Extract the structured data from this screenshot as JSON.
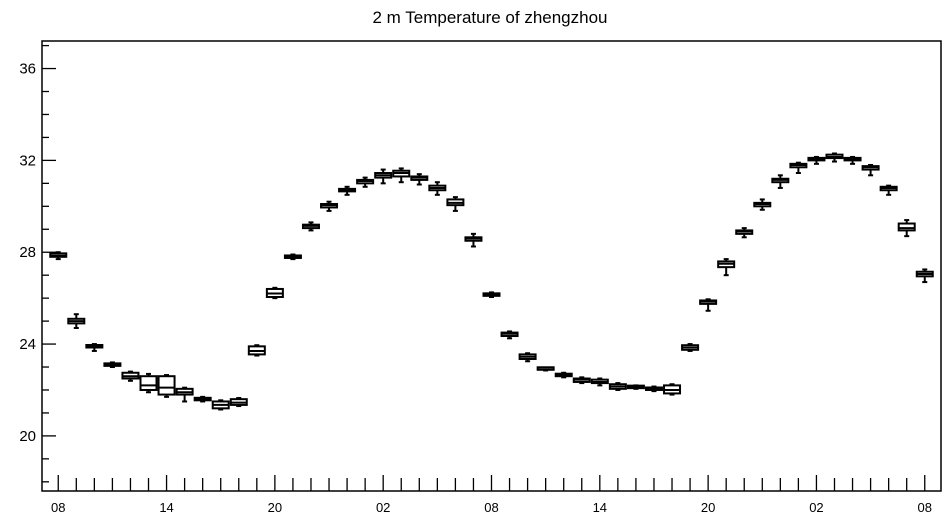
{
  "chart_data": {
    "type": "boxplot",
    "title": "2 m Temperature of zhengzhou",
    "xlabel": "",
    "ylabel": "",
    "x_tick_labels": [
      "08",
      "14",
      "20",
      "02",
      "08",
      "14",
      "20",
      "02",
      "08"
    ],
    "x_tick_hours": [
      0,
      6,
      12,
      18,
      24,
      30,
      36,
      42,
      48
    ],
    "xlim": [
      -0.9,
      48.9
    ],
    "y_tick_labels": [
      "20",
      "24",
      "28",
      "32",
      "36"
    ],
    "y_tick_values": [
      20,
      24,
      28,
      32,
      36
    ],
    "ylim": [
      17.6,
      37.2
    ],
    "grid": false,
    "series": [
      {
        "hour": 0,
        "min": 27.7,
        "q1": 27.8,
        "median": 27.85,
        "q3": 27.95,
        "max": 28.0
      },
      {
        "hour": 1,
        "min": 24.7,
        "q1": 24.9,
        "median": 25.0,
        "q3": 25.1,
        "max": 25.3
      },
      {
        "hour": 2,
        "min": 23.7,
        "q1": 23.85,
        "median": 23.9,
        "q3": 23.95,
        "max": 24.0
      },
      {
        "hour": 3,
        "min": 23.0,
        "q1": 23.05,
        "median": 23.1,
        "q3": 23.15,
        "max": 23.2
      },
      {
        "hour": 4,
        "min": 22.4,
        "q1": 22.5,
        "median": 22.6,
        "q3": 22.75,
        "max": 22.8
      },
      {
        "hour": 5,
        "min": 21.9,
        "q1": 22.0,
        "median": 22.2,
        "q3": 22.6,
        "max": 22.7
      },
      {
        "hour": 6,
        "min": 21.7,
        "q1": 21.8,
        "median": 22.1,
        "q3": 22.6,
        "max": 22.65
      },
      {
        "hour": 7,
        "min": 21.5,
        "q1": 21.8,
        "median": 21.9,
        "q3": 22.05,
        "max": 22.1
      },
      {
        "hour": 8,
        "min": 21.5,
        "q1": 21.55,
        "median": 21.6,
        "q3": 21.65,
        "max": 21.7
      },
      {
        "hour": 9,
        "min": 21.15,
        "q1": 21.2,
        "median": 21.35,
        "q3": 21.5,
        "max": 21.55
      },
      {
        "hour": 10,
        "min": 21.3,
        "q1": 21.35,
        "median": 21.45,
        "q3": 21.6,
        "max": 21.65
      },
      {
        "hour": 11,
        "min": 23.5,
        "q1": 23.55,
        "median": 23.7,
        "q3": 23.9,
        "max": 23.95
      },
      {
        "hour": 12,
        "min": 26.0,
        "q1": 26.05,
        "median": 26.2,
        "q3": 26.4,
        "max": 26.45
      },
      {
        "hour": 13,
        "min": 27.7,
        "q1": 27.75,
        "median": 27.8,
        "q3": 27.85,
        "max": 27.9
      },
      {
        "hour": 14,
        "min": 28.95,
        "q1": 29.05,
        "median": 29.15,
        "q3": 29.2,
        "max": 29.3
      },
      {
        "hour": 15,
        "min": 29.8,
        "q1": 29.95,
        "median": 30.05,
        "q3": 30.1,
        "max": 30.2
      },
      {
        "hour": 16,
        "min": 30.5,
        "q1": 30.65,
        "median": 30.7,
        "q3": 30.75,
        "max": 30.85
      },
      {
        "hour": 17,
        "min": 30.85,
        "q1": 31.0,
        "median": 31.1,
        "q3": 31.15,
        "max": 31.25
      },
      {
        "hour": 18,
        "min": 31.0,
        "q1": 31.25,
        "median": 31.35,
        "q3": 31.45,
        "max": 31.6
      },
      {
        "hour": 19,
        "min": 31.05,
        "q1": 31.3,
        "median": 31.45,
        "q3": 31.55,
        "max": 31.65
      },
      {
        "hour": 20,
        "min": 30.95,
        "q1": 31.15,
        "median": 31.25,
        "q3": 31.3,
        "max": 31.4
      },
      {
        "hour": 21,
        "min": 30.5,
        "q1": 30.7,
        "median": 30.8,
        "q3": 30.9,
        "max": 31.05
      },
      {
        "hour": 22,
        "min": 29.8,
        "q1": 30.05,
        "median": 30.15,
        "q3": 30.3,
        "max": 30.4
      },
      {
        "hour": 23,
        "min": 28.25,
        "q1": 28.5,
        "median": 28.6,
        "q3": 28.65,
        "max": 28.8
      },
      {
        "hour": 24,
        "min": 26.05,
        "q1": 26.1,
        "median": 26.15,
        "q3": 26.2,
        "max": 26.25
      },
      {
        "hour": 25,
        "min": 24.25,
        "q1": 24.35,
        "median": 24.45,
        "q3": 24.5,
        "max": 24.55
      },
      {
        "hour": 26,
        "min": 23.25,
        "q1": 23.35,
        "median": 23.45,
        "q3": 23.55,
        "max": 23.6
      },
      {
        "hour": 27,
        "min": 22.85,
        "q1": 22.88,
        "median": 22.9,
        "q3": 22.93,
        "max": 22.95
      },
      {
        "hour": 28,
        "min": 22.55,
        "q1": 22.6,
        "median": 22.65,
        "q3": 22.7,
        "max": 22.75
      },
      {
        "hour": 29,
        "min": 22.3,
        "q1": 22.35,
        "median": 22.45,
        "q3": 22.5,
        "max": 22.55
      },
      {
        "hour": 30,
        "min": 22.2,
        "q1": 22.3,
        "median": 22.35,
        "q3": 22.45,
        "max": 22.5
      },
      {
        "hour": 31,
        "min": 22.0,
        "q1": 22.05,
        "median": 22.15,
        "q3": 22.25,
        "max": 22.3
      },
      {
        "hour": 32,
        "min": 22.05,
        "q1": 22.08,
        "median": 22.12,
        "q3": 22.15,
        "max": 22.2
      },
      {
        "hour": 33,
        "min": 21.95,
        "q1": 22.0,
        "median": 22.05,
        "q3": 22.1,
        "max": 22.15
      },
      {
        "hour": 34,
        "min": 21.8,
        "q1": 21.85,
        "median": 22.0,
        "q3": 22.2,
        "max": 22.25
      },
      {
        "hour": 35,
        "min": 23.7,
        "q1": 23.75,
        "median": 23.85,
        "q3": 23.95,
        "max": 24.0
      },
      {
        "hour": 36,
        "min": 25.45,
        "q1": 25.75,
        "median": 25.85,
        "q3": 25.9,
        "max": 25.95
      },
      {
        "hour": 37,
        "min": 27.0,
        "q1": 27.35,
        "median": 27.5,
        "q3": 27.6,
        "max": 27.7
      },
      {
        "hour": 38,
        "min": 28.65,
        "q1": 28.8,
        "median": 28.9,
        "q3": 28.95,
        "max": 29.05
      },
      {
        "hour": 39,
        "min": 29.85,
        "q1": 30.0,
        "median": 30.1,
        "q3": 30.15,
        "max": 30.3
      },
      {
        "hour": 40,
        "min": 30.8,
        "q1": 31.05,
        "median": 31.15,
        "q3": 31.2,
        "max": 31.35
      },
      {
        "hour": 41,
        "min": 31.45,
        "q1": 31.7,
        "median": 31.8,
        "q3": 31.85,
        "max": 31.9
      },
      {
        "hour": 42,
        "min": 31.85,
        "q1": 32.0,
        "median": 32.05,
        "q3": 32.1,
        "max": 32.15
      },
      {
        "hour": 43,
        "min": 31.95,
        "q1": 32.1,
        "median": 32.15,
        "q3": 32.25,
        "max": 32.3
      },
      {
        "hour": 44,
        "min": 31.85,
        "q1": 32.0,
        "median": 32.05,
        "q3": 32.1,
        "max": 32.15
      },
      {
        "hour": 45,
        "min": 31.35,
        "q1": 31.6,
        "median": 31.7,
        "q3": 31.75,
        "max": 31.8
      },
      {
        "hour": 46,
        "min": 30.5,
        "q1": 30.7,
        "median": 30.8,
        "q3": 30.85,
        "max": 30.9
      },
      {
        "hour": 47,
        "min": 28.7,
        "q1": 28.95,
        "median": 29.05,
        "q3": 29.25,
        "max": 29.4
      },
      {
        "hour": 48,
        "min": 26.7,
        "q1": 26.95,
        "median": 27.05,
        "q3": 27.15,
        "max": 27.25
      }
    ]
  }
}
